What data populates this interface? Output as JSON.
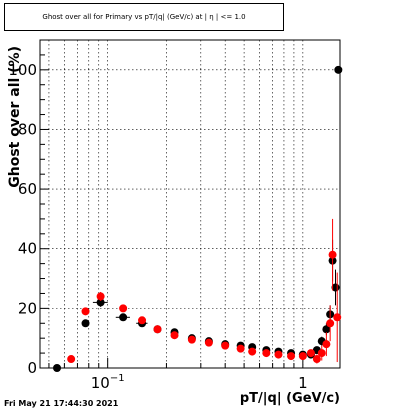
{
  "footer_text": "Fri May 21 17:44:30 2021",
  "chart_data": {
    "type": "scatter",
    "title": "Ghost over all for Primary vs pT/|q| (GeV/c) at | η | <= 1.0",
    "xlabel": "pT/|q| (GeV/c)",
    "ylabel": "Ghost over all (%)",
    "xscale": "log",
    "xlim": [
      0.045,
      1.55
    ],
    "ylim": [
      0,
      110
    ],
    "grid": true,
    "x_tick_labels": [
      {
        "value": 0.1,
        "base": "10",
        "exp": "−1"
      },
      {
        "value": 1,
        "base": "1",
        "exp": ""
      }
    ],
    "y_ticks": [
      0,
      20,
      40,
      60,
      80,
      100
    ],
    "series": [
      {
        "color": "#000000",
        "points": [
          {
            "x": 0.055,
            "y": 0,
            "ex": 0.0,
            "ey": 0
          },
          {
            "x": 0.077,
            "y": 15,
            "ex": 0.0,
            "ey": 1
          },
          {
            "x": 0.092,
            "y": 22,
            "ex": 0.008,
            "ey": 1.5
          },
          {
            "x": 0.12,
            "y": 17,
            "ex": 0.01,
            "ey": 1
          },
          {
            "x": 0.15,
            "y": 15,
            "ex": 0.01,
            "ey": 0.8
          },
          {
            "x": 0.18,
            "y": 13,
            "ex": 0.0,
            "ey": 0.6
          },
          {
            "x": 0.22,
            "y": 12,
            "ex": 0.0,
            "ey": 0.5
          },
          {
            "x": 0.27,
            "y": 10,
            "ex": 0.0,
            "ey": 0.5
          },
          {
            "x": 0.33,
            "y": 9,
            "ex": 0.0,
            "ey": 0.5
          },
          {
            "x": 0.4,
            "y": 8,
            "ex": 0.0,
            "ey": 0.5
          },
          {
            "x": 0.48,
            "y": 7.5,
            "ex": 0.0,
            "ey": 0.5
          },
          {
            "x": 0.55,
            "y": 7,
            "ex": 0.0,
            "ey": 0.5
          },
          {
            "x": 0.65,
            "y": 6,
            "ex": 0.0,
            "ey": 0.5
          },
          {
            "x": 0.75,
            "y": 5.5,
            "ex": 0.0,
            "ey": 0.5
          },
          {
            "x": 0.87,
            "y": 5,
            "ex": 0.0,
            "ey": 0.5
          },
          {
            "x": 1.0,
            "y": 4.5,
            "ex": 0.0,
            "ey": 0.5
          },
          {
            "x": 1.1,
            "y": 4.5,
            "ex": 0.0,
            "ey": 0.7
          },
          {
            "x": 1.18,
            "y": 6,
            "ex": 0.0,
            "ey": 1
          },
          {
            "x": 1.25,
            "y": 9,
            "ex": 0.0,
            "ey": 1.5
          },
          {
            "x": 1.32,
            "y": 13,
            "ex": 0.0,
            "ey": 2
          },
          {
            "x": 1.38,
            "y": 18,
            "ex": 0.0,
            "ey": 3
          },
          {
            "x": 1.42,
            "y": 36,
            "ex": 0.0,
            "ey": 7
          },
          {
            "x": 1.47,
            "y": 27,
            "ex": 0.0,
            "ey": 6
          },
          {
            "x": 1.52,
            "y": 100,
            "ex": 0.0,
            "ey": 0
          }
        ]
      },
      {
        "color": "#ff0000",
        "points": [
          {
            "x": 0.065,
            "y": 3,
            "ex": 0.0,
            "ey": 0.5
          },
          {
            "x": 0.077,
            "y": 19,
            "ex": 0.0,
            "ey": 1.2
          },
          {
            "x": 0.092,
            "y": 24,
            "ex": 0.0,
            "ey": 1.5
          },
          {
            "x": 0.12,
            "y": 20,
            "ex": 0.0,
            "ey": 1.2
          },
          {
            "x": 0.15,
            "y": 16,
            "ex": 0.0,
            "ey": 1
          },
          {
            "x": 0.18,
            "y": 13,
            "ex": 0.0,
            "ey": 0.8
          },
          {
            "x": 0.22,
            "y": 11,
            "ex": 0.0,
            "ey": 0.6
          },
          {
            "x": 0.27,
            "y": 9.5,
            "ex": 0.0,
            "ey": 0.6
          },
          {
            "x": 0.33,
            "y": 8.5,
            "ex": 0.0,
            "ey": 0.6
          },
          {
            "x": 0.4,
            "y": 7.5,
            "ex": 0.0,
            "ey": 0.6
          },
          {
            "x": 0.48,
            "y": 6.5,
            "ex": 0.0,
            "ey": 0.6
          },
          {
            "x": 0.55,
            "y": 5.5,
            "ex": 0.0,
            "ey": 0.6
          },
          {
            "x": 0.65,
            "y": 5,
            "ex": 0.0,
            "ey": 0.6
          },
          {
            "x": 0.75,
            "y": 4.5,
            "ex": 0.0,
            "ey": 0.6
          },
          {
            "x": 0.87,
            "y": 4,
            "ex": 0.0,
            "ey": 0.6
          },
          {
            "x": 1.0,
            "y": 4,
            "ex": 0.0,
            "ey": 0.8
          },
          {
            "x": 1.1,
            "y": 5,
            "ex": 0.0,
            "ey": 1.2
          },
          {
            "x": 1.18,
            "y": 3,
            "ex": 0.0,
            "ey": 1.5
          },
          {
            "x": 1.25,
            "y": 5,
            "ex": 0.0,
            "ey": 2.5
          },
          {
            "x": 1.32,
            "y": 8,
            "ex": 0.0,
            "ey": 4
          },
          {
            "x": 1.38,
            "y": 15,
            "ex": 0.0,
            "ey": 6
          },
          {
            "x": 1.42,
            "y": 38,
            "ex": 0.0,
            "ey": 12
          },
          {
            "x": 1.5,
            "y": 17,
            "ex": 0.0,
            "ey": 15
          }
        ]
      }
    ]
  }
}
